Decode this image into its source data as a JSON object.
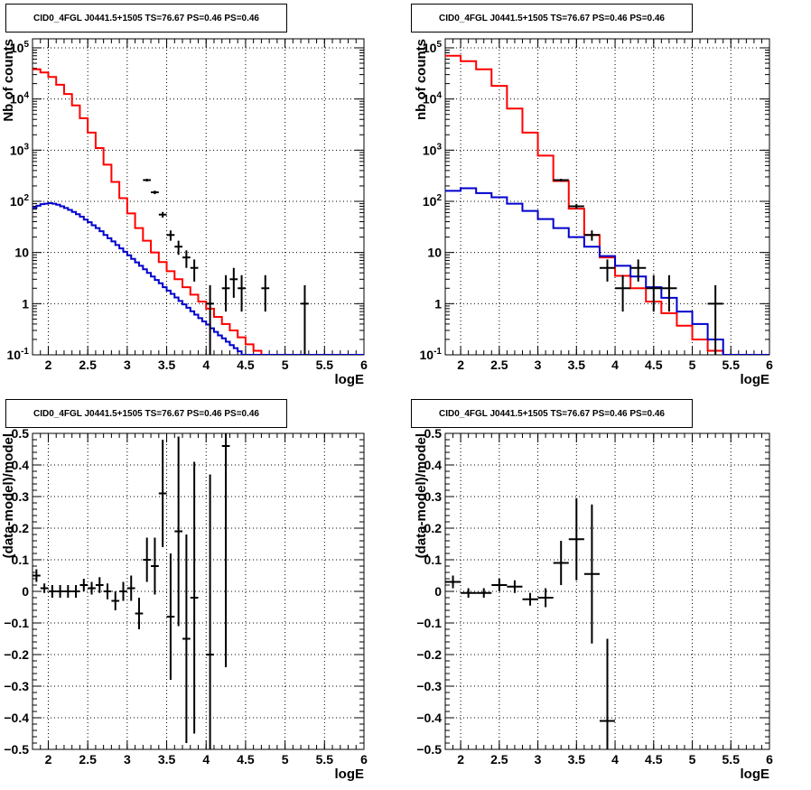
{
  "chart_data": [
    {
      "type": "line",
      "panel": "top-left",
      "title": "CID0_4FGL J0441.5+1505 TS=76.67 PS=0.46 PS=0.46",
      "xlabel": "logE",
      "ylabel": "Nb of counts",
      "xlim": [
        1.8,
        6.0
      ],
      "ylim": [
        0.1,
        150000
      ],
      "yscale": "log",
      "grid": true,
      "xticks": [
        "2",
        "2.5",
        "3",
        "3.5",
        "4",
        "4.5",
        "5",
        "5.5",
        "6"
      ],
      "yticks": [
        "10^-1",
        "1",
        "10",
        "10^2",
        "10^3",
        "10^4",
        "10^5"
      ],
      "colors": {
        "total_model": "#ff0000",
        "background": "#0000cc",
        "data": "#000000",
        "model_outline": "#000000"
      },
      "series": [
        {
          "name": "",
          "style": "step",
          "color": "#ff0000",
          "bin_width": 0.1,
          "x": [
            1.8,
            1.9,
            2.0,
            2.1,
            2.2,
            2.3,
            2.4,
            2.5,
            2.6,
            2.7,
            2.8,
            2.9,
            3.0,
            3.1,
            3.2,
            3.3,
            3.4,
            3.5,
            3.6,
            3.7,
            3.8,
            3.9,
            4.0,
            4.1,
            4.2,
            4.3,
            4.4,
            4.5,
            4.6,
            4.7,
            4.8,
            4.9,
            5.0,
            5.1,
            5.2,
            5.3,
            5.4,
            5.5,
            5.6,
            5.7,
            5.8,
            5.9
          ],
          "values": [
            38000,
            33000,
            27000,
            19000,
            12500,
            7500,
            4200,
            2200,
            1100,
            520,
            240,
            115,
            58,
            30,
            17,
            10,
            6.5,
            4.3,
            3.0,
            2.1,
            1.5,
            1.1,
            0.8,
            0.55,
            0.4,
            0.3,
            0.22,
            0.16,
            0.12,
            0.1,
            0.1,
            0.1,
            0.1,
            0.1,
            0.1,
            0.1,
            0.1,
            0.1,
            0.1,
            0.1,
            0.1,
            0.1
          ]
        },
        {
          "name": "",
          "style": "step",
          "color": "#0000cc",
          "bin_width": 0.05,
          "x": [
            1.8,
            1.85,
            1.9,
            1.95,
            2.0,
            2.05,
            2.1,
            2.15,
            2.2,
            2.25,
            2.3,
            2.35,
            2.4,
            2.45,
            2.5,
            2.55,
            2.6,
            2.65,
            2.7,
            2.75,
            2.8,
            2.85,
            2.9,
            2.95,
            3.0,
            3.05,
            3.1,
            3.15,
            3.2,
            3.25,
            3.3,
            3.35,
            3.4,
            3.45,
            3.5,
            3.55,
            3.6,
            3.65,
            3.7,
            3.75,
            3.8,
            3.85,
            3.9,
            3.95,
            4.0,
            4.05,
            4.1,
            4.15,
            4.2,
            4.25,
            4.3,
            4.35,
            4.4,
            4.45,
            4.5,
            4.55,
            4.6,
            4.65,
            4.7,
            4.75,
            4.8,
            4.85,
            4.9,
            4.95,
            5.0,
            5.05,
            5.1,
            5.15,
            5.2,
            5.25,
            5.3,
            5.35,
            5.4,
            5.45,
            5.5,
            5.55,
            5.6,
            5.65,
            5.7,
            5.75,
            5.8,
            5.85,
            5.9,
            5.95
          ],
          "values": [
            75,
            82,
            88,
            90,
            92,
            90,
            86,
            80,
            74,
            68,
            62,
            56,
            50,
            44,
            39,
            34,
            30,
            26,
            22,
            19,
            16.5,
            14,
            12,
            10.3,
            8.8,
            7.5,
            6.4,
            5.5,
            4.7,
            4.0,
            3.4,
            2.9,
            2.5,
            2.1,
            1.8,
            1.55,
            1.32,
            1.13,
            0.97,
            0.83,
            0.71,
            0.61,
            0.52,
            0.45,
            0.39,
            0.33,
            0.28,
            0.24,
            0.21,
            0.18,
            0.155,
            0.135,
            0.117,
            0.1,
            0.1,
            0.1,
            0.1,
            0.1,
            0.1,
            0.1,
            0.1,
            0.1,
            0.1,
            0.1,
            0.1,
            0.1,
            0.1,
            0.1,
            0.1,
            0.1,
            0.1,
            0.1,
            0.1,
            0.1,
            0.1,
            0.1,
            0.1,
            0.1,
            0.1,
            0.1,
            0.1,
            0.1,
            0.1,
            0.1
          ]
        },
        {
          "name": "",
          "style": "errorbar",
          "color": "#000000",
          "x": [
            3.25,
            3.35,
            3.45,
            3.55,
            3.65,
            3.75,
            3.85,
            4.05,
            4.25,
            4.35,
            4.45,
            4.75,
            5.25
          ],
          "values": [
            260,
            150,
            55,
            22,
            13,
            8,
            5,
            1.0,
            2.0,
            3.0,
            2.0,
            2.0,
            1.0
          ],
          "xerr": 0.05,
          "yerr_low": [
            16,
            12,
            7,
            5,
            4,
            3,
            2.3,
            0.9,
            1.3,
            1.7,
            1.3,
            1.3,
            0.9
          ],
          "yerr_high": [
            16,
            12,
            7,
            5,
            4,
            3,
            2.3,
            1.3,
            1.6,
            2.0,
            1.6,
            1.6,
            1.3
          ]
        }
      ]
    },
    {
      "type": "line",
      "panel": "top-right",
      "title": "CID0_4FGL J0441.5+1505 TS=76.67 PS=0.46 PS=0.46",
      "xlabel": "logE",
      "ylabel": "nb of counts",
      "xlim": [
        1.8,
        6.0
      ],
      "ylim": [
        0.1,
        150000
      ],
      "yscale": "log",
      "grid": true,
      "xticks": [
        "2",
        "2.5",
        "3",
        "3.5",
        "4",
        "4.5",
        "5",
        "5.5",
        "6"
      ],
      "yticks": [
        "10^-1",
        "1",
        "10",
        "10^2",
        "10^3",
        "10^4",
        "10^5"
      ],
      "colors": {
        "total_model": "#ff0000",
        "background": "#0000cc",
        "data": "#000000",
        "model_outline": "#000000"
      },
      "series": [
        {
          "name": "",
          "style": "step",
          "color": "#ff0000",
          "bin_width": 0.2,
          "x": [
            1.8,
            2.0,
            2.2,
            2.4,
            2.6,
            2.8,
            3.0,
            3.2,
            3.4,
            3.6,
            3.8,
            4.0,
            4.2,
            4.4,
            4.6,
            4.8,
            5.0,
            5.2,
            5.4,
            5.6,
            5.8
          ],
          "values": [
            70000,
            55000,
            38000,
            18000,
            6500,
            2200,
            780,
            250,
            72,
            22,
            8,
            3.5,
            2.0,
            1.1,
            0.65,
            0.37,
            0.2,
            0.12,
            0.1,
            0.1,
            0.1
          ]
        },
        {
          "name": "",
          "style": "step",
          "color": "#0000cc",
          "bin_width": 0.2,
          "x": [
            1.8,
            2.0,
            2.2,
            2.4,
            2.6,
            2.8,
            3.0,
            3.2,
            3.4,
            3.6,
            3.8,
            4.0,
            4.2,
            4.4,
            4.6,
            4.8,
            5.0,
            5.2,
            5.4,
            5.6,
            5.8
          ],
          "values": [
            160,
            180,
            145,
            120,
            90,
            65,
            45,
            30,
            20,
            13,
            8.5,
            5.5,
            3.4,
            2.1,
            1.3,
            0.7,
            0.4,
            0.2,
            0.1,
            0.1,
            0.1
          ]
        },
        {
          "name": "",
          "style": "errorbar",
          "color": "#000000",
          "x": [
            3.3,
            3.5,
            3.7,
            3.9,
            4.1,
            4.3,
            4.5,
            4.7,
            5.3
          ],
          "values": [
            260,
            80,
            22,
            5,
            2.0,
            5.0,
            2.0,
            2.0,
            1.0
          ],
          "xerr": 0.1,
          "yerr_low": [
            16,
            9,
            5,
            2.3,
            1.3,
            2.3,
            1.3,
            1.3,
            0.9
          ],
          "yerr_high": [
            16,
            9,
            5,
            2.3,
            1.6,
            2.3,
            1.6,
            1.6,
            1.3
          ]
        }
      ]
    },
    {
      "type": "scatter",
      "panel": "bottom-left",
      "title": "CID0_4FGL J0441.5+1505 TS=76.67 PS=0.46 PS=0.46",
      "xlabel": "logE",
      "ylabel": "(data-model)/model",
      "xlim": [
        1.8,
        6.0
      ],
      "ylim": [
        -0.5,
        0.5
      ],
      "grid": true,
      "xticks": [
        "2",
        "2.5",
        "3",
        "3.5",
        "4",
        "4.5",
        "5",
        "5.5",
        "6"
      ],
      "yticks": [
        "-0.5",
        "-0.4",
        "-0.3",
        "-0.2",
        "-0.1",
        "0",
        "0.1",
        "0.2",
        "0.3",
        "0.4",
        "0.5"
      ],
      "series": [
        {
          "name": "",
          "style": "errorbar",
          "color": "#000000",
          "x": [
            1.85,
            1.95,
            2.05,
            2.15,
            2.25,
            2.35,
            2.45,
            2.55,
            2.65,
            2.75,
            2.85,
            2.95,
            3.05,
            3.15,
            3.25,
            3.35,
            3.45,
            3.55,
            3.65,
            3.75,
            3.85,
            4.05,
            4.25
          ],
          "values": [
            0.05,
            0.01,
            0.0,
            0.0,
            0.0,
            0.0,
            0.02,
            0.01,
            0.02,
            0.0,
            -0.03,
            0.0,
            0.01,
            -0.07,
            0.1,
            0.08,
            0.31,
            -0.08,
            0.19,
            -0.15,
            -0.02,
            -0.2,
            0.46
          ],
          "xerr": 0.05,
          "yerr": [
            0.02,
            0.015,
            0.02,
            0.02,
            0.02,
            0.02,
            0.02,
            0.02,
            0.025,
            0.025,
            0.03,
            0.03,
            0.04,
            0.05,
            0.07,
            0.09,
            0.17,
            0.2,
            0.3,
            0.33,
            0.43,
            0.57,
            0.7
          ]
        }
      ]
    },
    {
      "type": "scatter",
      "panel": "bottom-right",
      "title": "CID0_4FGL J0441.5+1505 TS=76.67 PS=0.46 PS=0.46",
      "xlabel": "logE",
      "ylabel": "(data-model)/model",
      "xlim": [
        1.8,
        6.0
      ],
      "ylim": [
        -0.5,
        0.5
      ],
      "grid": true,
      "xticks": [
        "2",
        "2.5",
        "3",
        "3.5",
        "4",
        "4.5",
        "5",
        "5.5",
        "6"
      ],
      "yticks": [
        "-0.5",
        "-0.4",
        "-0.3",
        "-0.2",
        "-0.1",
        "0",
        "0.1",
        "0.2",
        "0.3",
        "0.4",
        "0.5"
      ],
      "series": [
        {
          "name": "",
          "style": "errorbar",
          "color": "#000000",
          "x": [
            1.9,
            2.1,
            2.3,
            2.5,
            2.7,
            2.9,
            3.1,
            3.3,
            3.5,
            3.7,
            3.9
          ],
          "values": [
            0.03,
            -0.005,
            -0.005,
            0.02,
            0.015,
            -0.025,
            -0.02,
            0.09,
            0.165,
            0.055,
            -0.41
          ],
          "xerr": 0.1,
          "yerr": [
            0.02,
            0.015,
            0.015,
            0.02,
            0.02,
            0.02,
            0.03,
            0.07,
            0.13,
            0.22,
            0.26
          ]
        }
      ]
    }
  ]
}
